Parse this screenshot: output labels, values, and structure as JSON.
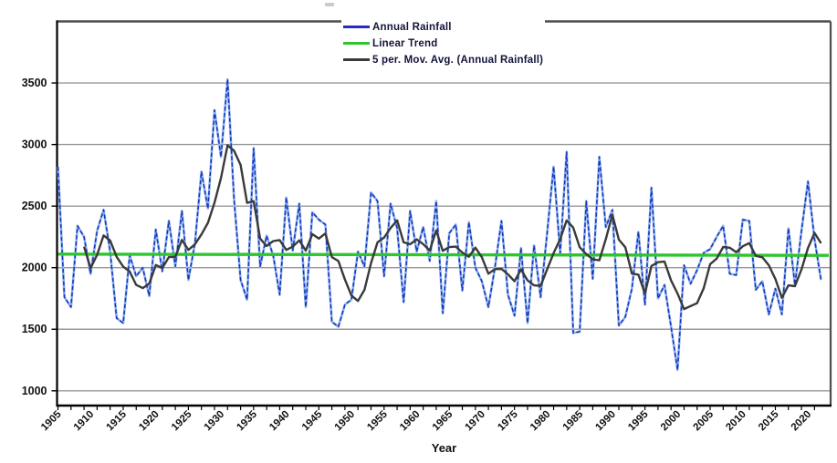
{
  "chart_data": {
    "type": "line",
    "title": "",
    "xlabel": "Year",
    "ylabel": "",
    "x_start_year": 1905,
    "x_end_year": 2022,
    "ylim": [
      880,
      4000
    ],
    "yticks": [
      1000,
      1500,
      2000,
      2500,
      3000,
      3500
    ],
    "xtick_label_years": [
      1905,
      1910,
      1915,
      1920,
      1925,
      1930,
      1935,
      1940,
      1945,
      1950,
      1955,
      1960,
      1965,
      1970,
      1975,
      1980,
      1985,
      1990,
      1995,
      2000,
      2005,
      2010,
      2015,
      2020
    ],
    "minor_tick_step_years": 2,
    "grid": "horizontal",
    "legend_position": "top-center",
    "series": [
      {
        "name": "Annual Rainfall",
        "role": "data",
        "values": [
          2820,
          1760,
          1680,
          2340,
          2250,
          1950,
          2300,
          2470,
          2130,
          1590,
          1550,
          2100,
          1930,
          2000,
          1770,
          2310,
          1970,
          2380,
          2010,
          2460,
          1900,
          2200,
          2780,
          2480,
          3280,
          2900,
          3530,
          2560,
          1900,
          1740,
          2970,
          2010,
          2260,
          2100,
          1780,
          2570,
          2140,
          2520,
          1680,
          2450,
          2390,
          2350,
          1560,
          1520,
          1700,
          1740,
          2130,
          2010,
          2610,
          2540,
          1930,
          2520,
          2320,
          1720,
          2460,
          2130,
          2330,
          2055,
          2540,
          1630,
          2280,
          2350,
          1815,
          2370,
          2000,
          1890,
          1680,
          2000,
          2380,
          1780,
          1610,
          2160,
          1550,
          2180,
          1760,
          2280,
          2820,
          2120,
          2940,
          1470,
          1480,
          2540,
          1910,
          2900,
          2330,
          2470,
          1530,
          1600,
          1830,
          2290,
          1700,
          2650,
          1750,
          1860,
          1520,
          1170,
          2020,
          1870,
          1980,
          2120,
          2150,
          2250,
          2340,
          1950,
          1940,
          2390,
          2380,
          1820,
          1890,
          1620,
          1830,
          1620,
          2320,
          1860,
          2300,
          2700,
          2230,
          1900
        ]
      },
      {
        "name": "Linear Trend",
        "role": "trendline",
        "start_value": 2110,
        "end_value": 2100
      },
      {
        "name": "5 per. Mov. Avg. (Annual Rainfall)",
        "role": "moving_average",
        "window": 5,
        "derived_from": "Annual Rainfall"
      }
    ],
    "colors": {
      "annual_halo": "#8fb4ea",
      "annual_core": "#1534be",
      "trend": "#2fc52f",
      "moving_average": "#3a3a3a",
      "grid": "#999999",
      "axis": "#000000",
      "border": "#4d4d4d",
      "tick_label": "#111111"
    }
  },
  "legend": {
    "items": [
      {
        "label": "Annual Rainfall",
        "color": "#2a2ac8",
        "dash": "solid"
      },
      {
        "label": "Linear Trend",
        "color": "#2fc52f",
        "dash": "solid"
      },
      {
        "label": "5 per. Mov. Avg. (Annual Rainfall)",
        "color": "#3a3a3a",
        "dash": "solid"
      }
    ]
  }
}
